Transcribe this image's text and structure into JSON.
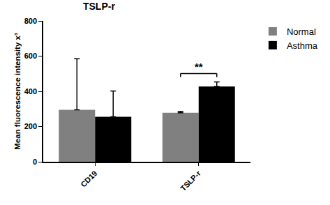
{
  "chart_data": {
    "type": "bar",
    "title": "TSLP-r",
    "y_label": "Mean fluorescence intensity x³",
    "categories": [
      "CD19",
      "TSLP-r"
    ],
    "series": [
      {
        "name": "Normal",
        "color": "#808080",
        "values": [
          295,
          278
        ],
        "error": [
          290,
          8
        ]
      },
      {
        "name": "Asthma",
        "color": "#000000",
        "values": [
          255,
          428
        ],
        "error": [
          147,
          25
        ]
      }
    ],
    "ylim": [
      0,
      800
    ],
    "yticks": [
      0,
      200,
      400,
      600,
      800
    ],
    "grid": false,
    "legend": "top right",
    "annotations": [
      {
        "text": "**",
        "category": "TSLP-r"
      }
    ]
  }
}
